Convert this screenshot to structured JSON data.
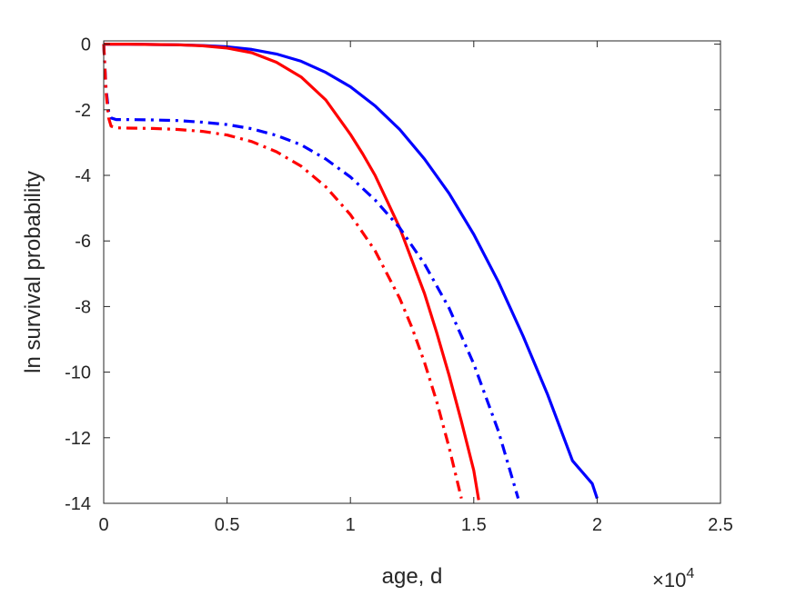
{
  "chart_data": {
    "type": "line",
    "title": "",
    "xlabel": "age, d",
    "ylabel": "ln survival probability",
    "x_exponent_label": {
      "base": "×10",
      "exp": "4"
    },
    "xlim": [
      0,
      25000
    ],
    "ylim": [
      -14,
      0.1
    ],
    "x_ticks": [
      0,
      5000,
      10000,
      15000,
      20000,
      25000
    ],
    "x_tick_labels": [
      "0",
      "0.5",
      "1",
      "1.5",
      "2",
      "2.5"
    ],
    "y_ticks": [
      0,
      -2,
      -4,
      -6,
      -8,
      -10,
      -12,
      -14
    ],
    "y_tick_labels": [
      "0",
      "-2",
      "-4",
      "-6",
      "-8",
      "-10",
      "-12",
      "-14"
    ],
    "grid": false,
    "legend": "none",
    "series": [
      {
        "color": "#0000ff",
        "style": "solid",
        "x": [
          0,
          1000,
          2000,
          3000,
          4000,
          5000,
          6000,
          7000,
          8000,
          9000,
          10000,
          11000,
          12000,
          13000,
          14000,
          15000,
          16000,
          17000,
          18000,
          19000,
          19800,
          20000
        ],
        "y": [
          0,
          0,
          -0.01,
          -0.02,
          -0.04,
          -0.08,
          -0.16,
          -0.3,
          -0.52,
          -0.86,
          -1.3,
          -1.88,
          -2.6,
          -3.5,
          -4.55,
          -5.8,
          -7.25,
          -8.9,
          -10.7,
          -12.7,
          -13.4,
          -13.85
        ]
      },
      {
        "color": "#ff0000",
        "style": "solid",
        "x": [
          0,
          1000,
          2000,
          3000,
          4000,
          5000,
          6000,
          7000,
          8000,
          9000,
          10000,
          10500,
          11000,
          11500,
          12000,
          12500,
          13000,
          13500,
          14000,
          14500,
          15000,
          15200
        ],
        "y": [
          0,
          0,
          -0.01,
          -0.02,
          -0.05,
          -0.12,
          -0.26,
          -0.55,
          -1.0,
          -1.7,
          -2.75,
          -3.35,
          -4.0,
          -4.8,
          -5.6,
          -6.6,
          -7.6,
          -8.8,
          -10.1,
          -11.5,
          -13.0,
          -13.9
        ]
      },
      {
        "color": "#0000ff",
        "style": "dash-dot",
        "x": [
          0,
          100,
          200,
          300,
          500,
          1000,
          2000,
          3000,
          4000,
          5000,
          6000,
          7000,
          8000,
          9000,
          10000,
          11000,
          12000,
          13000,
          14000,
          15000,
          16000,
          16800
        ],
        "y": [
          0,
          -1.4,
          -2.05,
          -2.25,
          -2.3,
          -2.3,
          -2.31,
          -2.33,
          -2.38,
          -2.45,
          -2.58,
          -2.78,
          -3.07,
          -3.5,
          -4.05,
          -4.75,
          -5.6,
          -6.7,
          -8.05,
          -9.75,
          -11.8,
          -13.85
        ]
      },
      {
        "color": "#ff0000",
        "style": "dash-dot",
        "x": [
          0,
          100,
          200,
          300,
          500,
          1000,
          2000,
          3000,
          4000,
          5000,
          6000,
          7000,
          8000,
          9000,
          10000,
          11000,
          12000,
          12500,
          13000,
          13500,
          14000,
          14500
        ],
        "y": [
          0,
          -1.5,
          -2.25,
          -2.5,
          -2.55,
          -2.56,
          -2.57,
          -2.6,
          -2.66,
          -2.77,
          -2.97,
          -3.28,
          -3.72,
          -4.35,
          -5.2,
          -6.3,
          -7.75,
          -8.65,
          -9.7,
          -10.9,
          -12.3,
          -13.85
        ]
      }
    ]
  }
}
